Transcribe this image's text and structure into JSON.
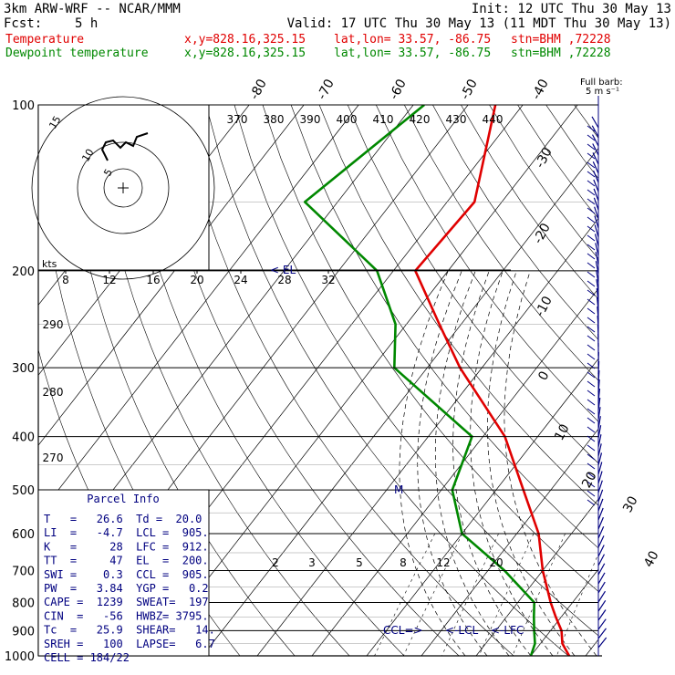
{
  "header": {
    "model": "3km ARW-WRF -- NCAR/MMM",
    "init": "Init: 12 UTC Thu 30 May 13",
    "fcst_label": "Fcst:",
    "fcst_value": "5 h",
    "valid": "Valid: 17 UTC Thu 30 May 13 (11 MDT Thu 30 May 13)"
  },
  "legend": {
    "temp_label": "Temperature",
    "dew_label": "Dewpoint temperature",
    "xy": "x,y=828.16,325.15",
    "latlon": "lat,lon= 33.57, -86.75",
    "station": "stn=BHM ,72228",
    "temp_color": "#e00000",
    "dew_color": "#008800"
  },
  "chart_data": {
    "type": "skew-t",
    "pressure_ticks": [
      "100",
      "200",
      "300",
      "400",
      "500",
      "600",
      "700",
      "800",
      "900",
      "1000"
    ],
    "isotherm_top_labels": [
      "-80",
      "-70",
      "-60",
      "-50",
      "-40"
    ],
    "isotherm_right_labels": [
      "-30",
      "-20",
      "-10",
      "0",
      "10",
      "20",
      "30",
      "40"
    ],
    "theta_labels": [
      "370",
      "380",
      "390",
      "400",
      "410",
      "420",
      "430",
      "440"
    ],
    "theta_left_labels": [
      "290",
      "280",
      "270"
    ],
    "mixing_ratio_labels": [
      "2",
      "3",
      "5",
      "8",
      "12",
      "20"
    ],
    "hodograph": {
      "units": "kts",
      "ring_labels": [
        "5",
        "10",
        "15"
      ],
      "speed_scale": [
        "8",
        "12",
        "16",
        "20",
        "24",
        "28",
        "32"
      ]
    },
    "markers": {
      "el": "EL",
      "m": "M",
      "ccl": "CCL",
      "lcl": "LCL",
      "lfc": "LFC"
    },
    "barb_label": "Full barb:",
    "barb_value": "5 m s⁻¹",
    "temperature_profile": [
      {
        "p": 100,
        "t": -65
      },
      {
        "p": 150,
        "t": -55
      },
      {
        "p": 200,
        "t": -56
      },
      {
        "p": 250,
        "t": -44
      },
      {
        "p": 300,
        "t": -34
      },
      {
        "p": 400,
        "t": -16
      },
      {
        "p": 500,
        "t": -5
      },
      {
        "p": 600,
        "t": 4
      },
      {
        "p": 700,
        "t": 10
      },
      {
        "p": 800,
        "t": 16
      },
      {
        "p": 850,
        "t": 19
      },
      {
        "p": 900,
        "t": 22
      },
      {
        "p": 950,
        "t": 24
      },
      {
        "p": 1000,
        "t": 27
      }
    ],
    "dewpoint_profile": [
      {
        "p": 100,
        "t": -78
      },
      {
        "p": 150,
        "t": -86
      },
      {
        "p": 200,
        "t": -63
      },
      {
        "p": 250,
        "t": -52
      },
      {
        "p": 300,
        "t": -46
      },
      {
        "p": 400,
        "t": -22
      },
      {
        "p": 500,
        "t": -18
      },
      {
        "p": 600,
        "t": -10
      },
      {
        "p": 700,
        "t": 3
      },
      {
        "p": 800,
        "t": 13
      },
      {
        "p": 850,
        "t": 15
      },
      {
        "p": 900,
        "t": 17
      },
      {
        "p": 950,
        "t": 19
      },
      {
        "p": 1000,
        "t": 20
      }
    ],
    "parcel_info": {
      "title": "Parcel Info",
      "rows": [
        "T   =   26.6  Td =  20.0",
        "LI  =   -4.7  LCL =  905.",
        "K   =     28  LFC =  912.",
        "TT  =     47  EL  =  200.",
        "SWI =    0.3  CCL =  905.",
        "PW  =   3.84  YGP =   0.2",
        "CAPE =  1239  SWEAT=  197",
        "CIN  =   -56  HWBZ= 3795.",
        "Tc  =   25.9  SHEAR=   14.",
        "SREH =   100  LAPSE=   6.7",
        "CELL = 184/22"
      ]
    }
  }
}
